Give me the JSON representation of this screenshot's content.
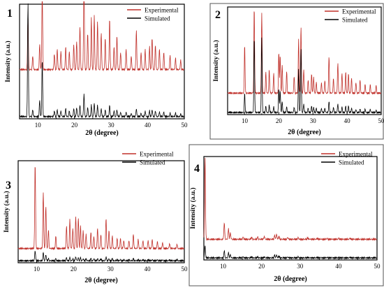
{
  "colors": {
    "experimental": "#c0302a",
    "simulated": "#000000",
    "frame": "#000000"
  },
  "chart_data": [
    {
      "type": "line",
      "panel_label": "1",
      "xlabel": "2θ (degree)",
      "ylabel": "Intensity (a.u.)",
      "xlim": [
        5,
        50
      ],
      "x_ticks": [
        10,
        20,
        30,
        40,
        50
      ],
      "grid": false,
      "legend_position": "top-right",
      "series": [
        {
          "name": "Experimental",
          "color": "#c0302a",
          "offset": 0.43,
          "peaks": [
            [
              7.3,
              0.45
            ],
            [
              8.6,
              0.12
            ],
            [
              10.5,
              0.22
            ],
            [
              11.2,
              0.72
            ],
            [
              14.5,
              0.14
            ],
            [
              15.3,
              0.18
            ],
            [
              16.3,
              0.16
            ],
            [
              17.6,
              0.2
            ],
            [
              18.6,
              0.16
            ],
            [
              19.8,
              0.22
            ],
            [
              20.6,
              0.25
            ],
            [
              21.5,
              0.38
            ],
            [
              22.6,
              0.86
            ],
            [
              23.6,
              0.32
            ],
            [
              24.6,
              0.45
            ],
            [
              25.4,
              0.48
            ],
            [
              26.3,
              0.42
            ],
            [
              27.3,
              0.32
            ],
            [
              28.4,
              0.28
            ],
            [
              29.6,
              0.45
            ],
            [
              30.8,
              0.2
            ],
            [
              31.6,
              0.3
            ],
            [
              32.6,
              0.15
            ],
            [
              34.1,
              0.18
            ],
            [
              35.5,
              0.12
            ],
            [
              36.9,
              0.35
            ],
            [
              38.2,
              0.15
            ],
            [
              39.3,
              0.18
            ],
            [
              40.5,
              0.2
            ],
            [
              41.2,
              0.28
            ],
            [
              42.1,
              0.22
            ],
            [
              43.2,
              0.18
            ],
            [
              44.4,
              0.15
            ],
            [
              46.1,
              0.12
            ],
            [
              47.6,
              0.1
            ],
            [
              49.0,
              0.08
            ]
          ]
        },
        {
          "name": "Simulated",
          "color": "#000000",
          "offset": 0.02,
          "peaks": [
            [
              7.3,
              1.0
            ],
            [
              8.6,
              0.06
            ],
            [
              10.5,
              0.14
            ],
            [
              11.2,
              0.5
            ],
            [
              14.5,
              0.05
            ],
            [
              15.3,
              0.06
            ],
            [
              16.3,
              0.05
            ],
            [
              17.6,
              0.07
            ],
            [
              18.6,
              0.05
            ],
            [
              19.8,
              0.07
            ],
            [
              20.6,
              0.08
            ],
            [
              21.5,
              0.1
            ],
            [
              22.6,
              0.2
            ],
            [
              23.6,
              0.08
            ],
            [
              24.6,
              0.1
            ],
            [
              25.4,
              0.12
            ],
            [
              26.3,
              0.1
            ],
            [
              27.3,
              0.07
            ],
            [
              28.4,
              0.06
            ],
            [
              29.6,
              0.1
            ],
            [
              30.8,
              0.05
            ],
            [
              31.6,
              0.06
            ],
            [
              32.6,
              0.04
            ],
            [
              34.1,
              0.04
            ],
            [
              35.5,
              0.03
            ],
            [
              36.9,
              0.07
            ],
            [
              38.2,
              0.03
            ],
            [
              39.3,
              0.05
            ],
            [
              40.5,
              0.05
            ],
            [
              41.2,
              0.06
            ],
            [
              42.1,
              0.05
            ],
            [
              43.2,
              0.04
            ],
            [
              44.4,
              0.04
            ],
            [
              46.1,
              0.03
            ],
            [
              47.6,
              0.03
            ],
            [
              49.0,
              0.02
            ]
          ]
        }
      ]
    },
    {
      "type": "line",
      "panel_label": "2",
      "xlabel": "2θ (degree)",
      "ylabel": "Intensity (a.u.)",
      "xlim": [
        5,
        50
      ],
      "x_ticks": [
        10,
        20,
        30,
        40,
        50
      ],
      "grid": false,
      "legend_position": "top-right",
      "series": [
        {
          "name": "Experimental",
          "color": "#c0302a",
          "offset": 0.2,
          "peaks": [
            [
              10.0,
              0.45
            ],
            [
              12.8,
              0.8
            ],
            [
              15.0,
              0.75
            ],
            [
              16.2,
              0.2
            ],
            [
              17.2,
              0.22
            ],
            [
              18.5,
              0.18
            ],
            [
              20.0,
              0.38
            ],
            [
              20.4,
              0.35
            ],
            [
              21.0,
              0.26
            ],
            [
              22.3,
              0.2
            ],
            [
              24.5,
              0.16
            ],
            [
              25.8,
              0.5
            ],
            [
              26.5,
              0.62
            ],
            [
              27.3,
              0.22
            ],
            [
              28.6,
              0.12
            ],
            [
              29.6,
              0.18
            ],
            [
              30.2,
              0.15
            ],
            [
              31.0,
              0.1
            ],
            [
              32.5,
              0.1
            ],
            [
              33.5,
              0.12
            ],
            [
              34.7,
              0.34
            ],
            [
              36.0,
              0.14
            ],
            [
              37.3,
              0.28
            ],
            [
              38.5,
              0.18
            ],
            [
              39.6,
              0.2
            ],
            [
              40.4,
              0.18
            ],
            [
              41.3,
              0.14
            ],
            [
              42.6,
              0.1
            ],
            [
              43.8,
              0.12
            ],
            [
              45.3,
              0.08
            ],
            [
              46.8,
              0.08
            ],
            [
              48.5,
              0.07
            ]
          ]
        },
        {
          "name": "Simulated",
          "color": "#000000",
          "offset": 0.02,
          "peaks": [
            [
              10.0,
              0.18
            ],
            [
              12.8,
              0.7
            ],
            [
              15.0,
              0.7
            ],
            [
              16.2,
              0.06
            ],
            [
              17.2,
              0.07
            ],
            [
              18.5,
              0.05
            ],
            [
              20.0,
              0.22
            ],
            [
              20.4,
              0.2
            ],
            [
              21.0,
              0.1
            ],
            [
              22.3,
              0.05
            ],
            [
              24.5,
              0.05
            ],
            [
              25.8,
              0.4
            ],
            [
              26.5,
              0.6
            ],
            [
              27.3,
              0.08
            ],
            [
              28.6,
              0.04
            ],
            [
              29.6,
              0.06
            ],
            [
              30.2,
              0.05
            ],
            [
              31.0,
              0.04
            ],
            [
              32.5,
              0.04
            ],
            [
              33.5,
              0.04
            ],
            [
              34.7,
              0.1
            ],
            [
              36.0,
              0.05
            ],
            [
              37.3,
              0.08
            ],
            [
              38.5,
              0.05
            ],
            [
              39.6,
              0.06
            ],
            [
              40.4,
              0.06
            ],
            [
              41.3,
              0.04
            ],
            [
              42.6,
              0.03
            ],
            [
              43.8,
              0.03
            ],
            [
              45.3,
              0.03
            ],
            [
              46.8,
              0.03
            ],
            [
              48.5,
              0.02
            ]
          ]
        }
      ]
    },
    {
      "type": "line",
      "panel_label": "3",
      "xlabel": "2θ (degree)",
      "ylabel": "Intensity (a.u.)",
      "xlim": [
        5,
        50
      ],
      "x_ticks": [
        10,
        20,
        30,
        40,
        50
      ],
      "grid": false,
      "legend_position": "top-right",
      "series": [
        {
          "name": "Experimental",
          "color": "#c0302a",
          "offset": 0.14,
          "peaks": [
            [
              9.6,
              0.85
            ],
            [
              11.8,
              0.55
            ],
            [
              12.5,
              0.42
            ],
            [
              13.2,
              0.18
            ],
            [
              15.2,
              0.12
            ],
            [
              18.1,
              0.22
            ],
            [
              19.0,
              0.28
            ],
            [
              19.8,
              0.2
            ],
            [
              20.6,
              0.32
            ],
            [
              21.3,
              0.3
            ],
            [
              21.9,
              0.22
            ],
            [
              22.6,
              0.18
            ],
            [
              23.4,
              0.14
            ],
            [
              24.7,
              0.16
            ],
            [
              25.5,
              0.12
            ],
            [
              26.5,
              0.2
            ],
            [
              27.4,
              0.14
            ],
            [
              28.8,
              0.3
            ],
            [
              29.6,
              0.18
            ],
            [
              30.5,
              0.12
            ],
            [
              31.8,
              0.1
            ],
            [
              32.7,
              0.1
            ],
            [
              33.6,
              0.08
            ],
            [
              35.0,
              0.08
            ],
            [
              36.2,
              0.14
            ],
            [
              37.5,
              0.09
            ],
            [
              38.8,
              0.08
            ],
            [
              40.2,
              0.08
            ],
            [
              41.3,
              0.09
            ],
            [
              42.7,
              0.07
            ],
            [
              44.1,
              0.06
            ],
            [
              46.0,
              0.05
            ],
            [
              48.0,
              0.04
            ]
          ]
        },
        {
          "name": "Simulated",
          "color": "#000000",
          "offset": 0.02,
          "peaks": [
            [
              9.6,
              0.1
            ],
            [
              11.8,
              0.08
            ],
            [
              12.5,
              0.06
            ],
            [
              13.2,
              0.02
            ],
            [
              15.2,
              0.02
            ],
            [
              18.1,
              0.03
            ],
            [
              19.0,
              0.03
            ],
            [
              19.8,
              0.02
            ],
            [
              20.6,
              0.04
            ],
            [
              21.3,
              0.03
            ],
            [
              21.9,
              0.03
            ],
            [
              22.6,
              0.02
            ],
            [
              23.4,
              0.02
            ],
            [
              24.7,
              0.02
            ],
            [
              25.5,
              0.02
            ],
            [
              26.5,
              0.02
            ],
            [
              27.4,
              0.02
            ],
            [
              28.8,
              0.04
            ],
            [
              29.6,
              0.02
            ],
            [
              30.5,
              0.02
            ],
            [
              31.8,
              0.01
            ],
            [
              32.7,
              0.01
            ],
            [
              33.6,
              0.01
            ],
            [
              35.0,
              0.01
            ],
            [
              36.2,
              0.02
            ],
            [
              37.5,
              0.01
            ],
            [
              38.8,
              0.01
            ],
            [
              40.2,
              0.01
            ],
            [
              41.3,
              0.01
            ],
            [
              42.7,
              0.01
            ],
            [
              44.1,
              0.01
            ],
            [
              46.0,
              0.01
            ],
            [
              48.0,
              0.01
            ]
          ]
        }
      ]
    },
    {
      "type": "line",
      "panel_label": "4",
      "xlabel": "2θ (degree)",
      "ylabel": "Intensity (a.u.)",
      "xlim": [
        5,
        50
      ],
      "x_ticks": [
        10,
        20,
        30,
        40,
        50
      ],
      "grid": false,
      "legend_position": "top-right",
      "series": [
        {
          "name": "Experimental",
          "color": "#c0302a",
          "offset": 0.2,
          "peaks": [
            [
              5.3,
              0.8
            ],
            [
              10.3,
              0.16
            ],
            [
              11.4,
              0.1
            ],
            [
              11.9,
              0.06
            ],
            [
              15.2,
              0.02
            ],
            [
              17.4,
              0.02
            ],
            [
              19.0,
              0.02
            ],
            [
              20.7,
              0.03
            ],
            [
              23.4,
              0.04
            ],
            [
              23.9,
              0.05
            ],
            [
              24.5,
              0.03
            ],
            [
              26.8,
              0.02
            ],
            [
              29.5,
              0.015
            ],
            [
              32.0,
              0.015
            ],
            [
              34.5,
              0.01
            ],
            [
              37.0,
              0.01
            ],
            [
              40.0,
              0.01
            ],
            [
              43.0,
              0.01
            ]
          ]
        },
        {
          "name": "Simulated",
          "color": "#000000",
          "offset": 0.02,
          "peaks": [
            [
              5.3,
              0.12
            ],
            [
              10.3,
              0.07
            ],
            [
              11.4,
              0.05
            ],
            [
              11.9,
              0.03
            ],
            [
              15.2,
              0.01
            ],
            [
              17.4,
              0.01
            ],
            [
              19.0,
              0.01
            ],
            [
              20.7,
              0.01
            ],
            [
              23.4,
              0.03
            ],
            [
              23.9,
              0.03
            ],
            [
              24.5,
              0.02
            ],
            [
              26.8,
              0.01
            ],
            [
              29.5,
              0.01
            ],
            [
              32.0,
              0.005
            ],
            [
              34.5,
              0.005
            ],
            [
              37.0,
              0.005
            ],
            [
              40.0,
              0.005
            ],
            [
              43.0,
              0.005
            ]
          ]
        }
      ]
    }
  ]
}
